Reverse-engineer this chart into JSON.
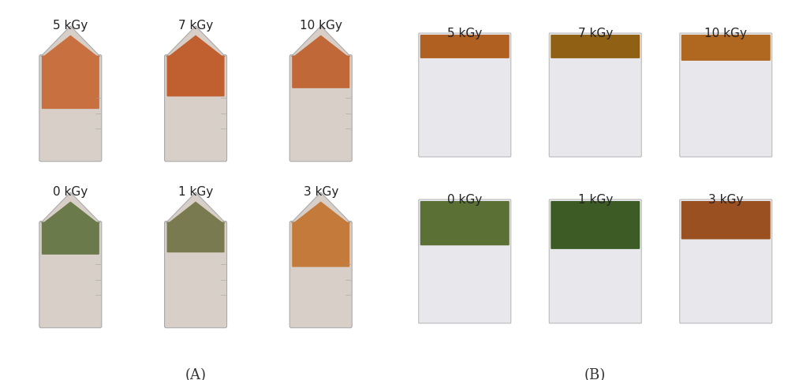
{
  "title_A": "(A)",
  "title_B": "(B)",
  "labels_A": [
    "0 kGy",
    "1 kGy",
    "3 kGy",
    "5 kGy",
    "7 kGy",
    "10 kGy"
  ],
  "labels_B": [
    "0 kGy",
    "1 kGy",
    "3 kGy",
    "5 kGy",
    "7 kGy",
    "10 kGy"
  ],
  "bg_color": "#f0f0f0",
  "figure_bg": "#ffffff",
  "font_size_label": 11,
  "font_size_title": 13,
  "tube_bg": "#d8d0c8",
  "tube_content_colors": [
    "#6b7a4a",
    "#7a7a50",
    "#c47a3a",
    "#c87040",
    "#c06030",
    "#c06838"
  ],
  "bag_bg": "#e8e8ec",
  "bag_content_colors_top": [
    [
      "#4a6a30",
      "#3a5028"
    ],
    [
      "#3a5a28",
      "#2a4020"
    ],
    [
      "#a05020",
      "#8a4018"
    ]
  ],
  "bag_content_colors_bottom": [
    [
      "#b06020",
      "#a05018"
    ],
    [
      "#906018",
      "#806010"
    ],
    [
      "#b06820",
      "#a05c18"
    ]
  ]
}
